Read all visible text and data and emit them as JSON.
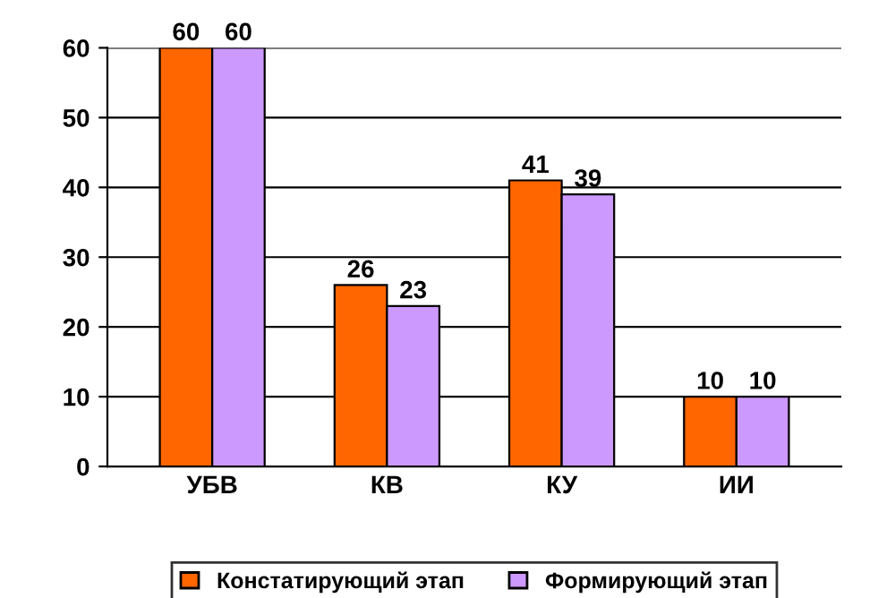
{
  "chart_data": {
    "type": "bar",
    "categories": [
      "УБВ",
      "КВ",
      "КУ",
      "ИИ"
    ],
    "series": [
      {
        "name": "Констатирующий этап",
        "color": "#ff6600",
        "values": [
          60,
          26,
          41,
          10
        ]
      },
      {
        "name": "Формирующий этап",
        "color": "#cc99ff",
        "values": [
          60,
          23,
          39,
          10
        ]
      }
    ],
    "ylim": [
      0,
      60
    ],
    "yticks": [
      0,
      10,
      20,
      30,
      40,
      50,
      60
    ],
    "grid": "y",
    "legend": "bottom",
    "data_labels": true
  }
}
